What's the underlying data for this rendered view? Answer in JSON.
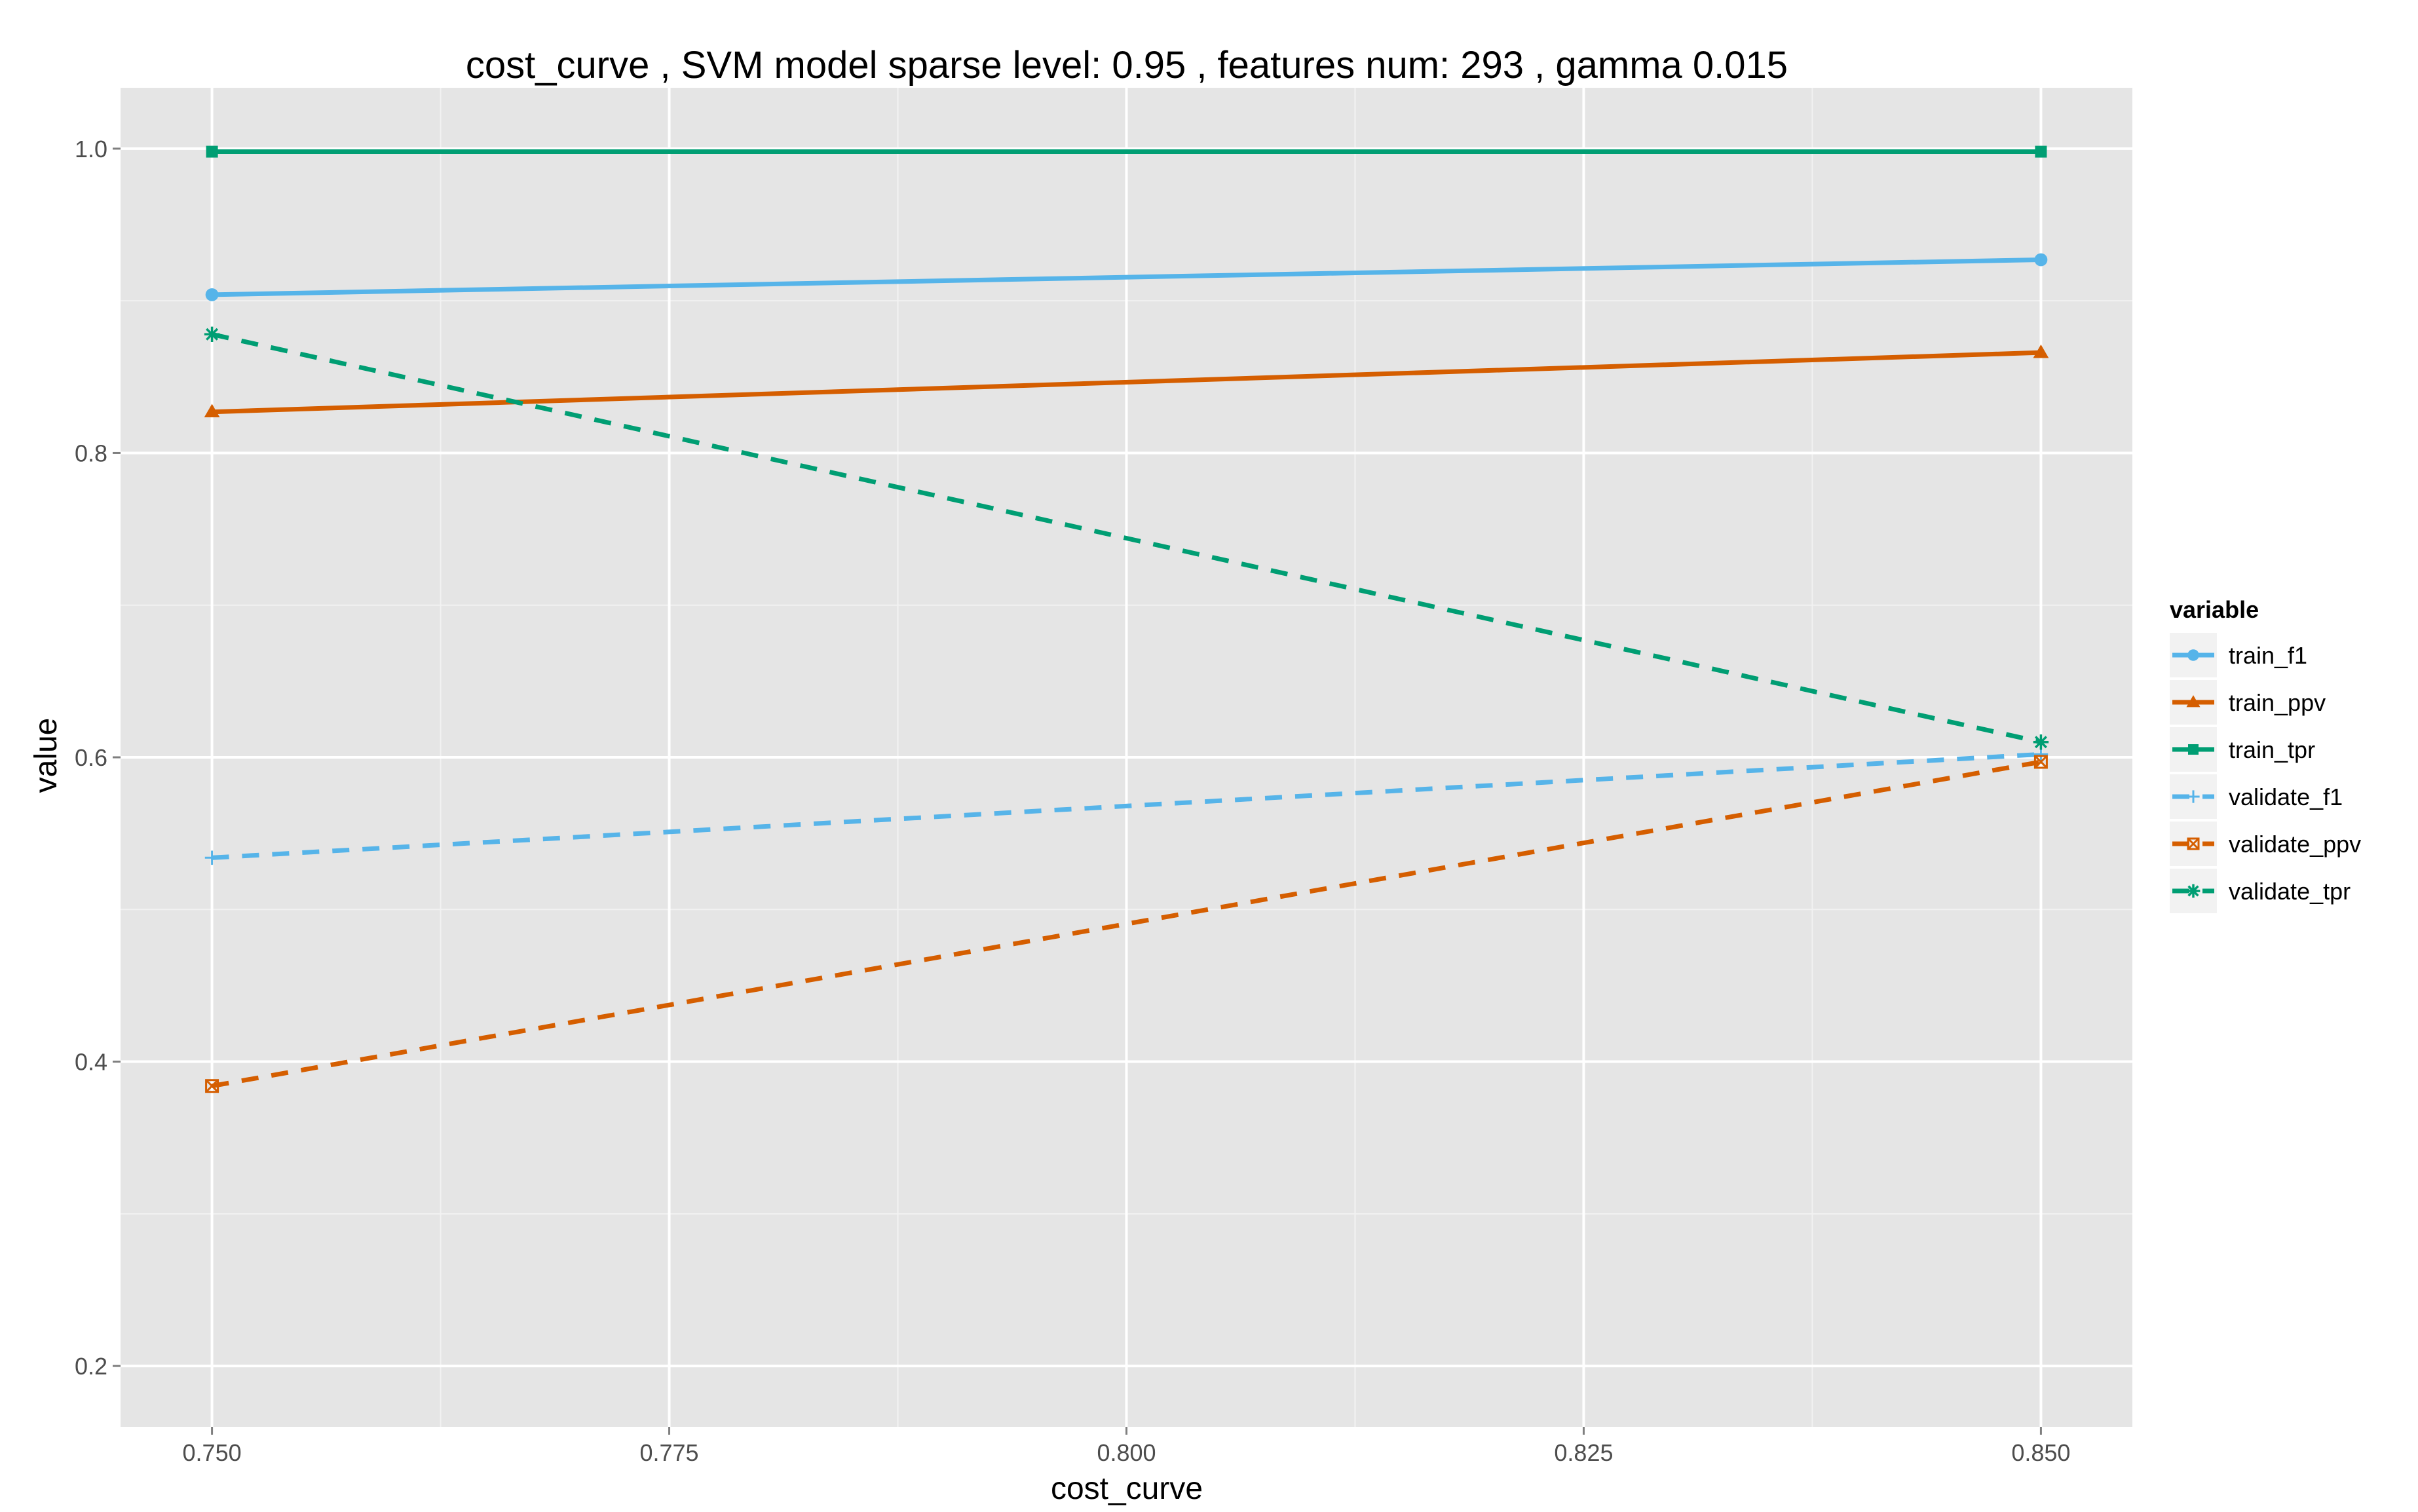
{
  "chart_data": {
    "type": "line",
    "title": "cost_curve ,  SVM model sparse level: 0.95 , features num: 293 , gamma 0.015",
    "xlabel": "cost_curve",
    "ylabel": "value",
    "x": [
      0.75,
      0.85
    ],
    "xlim": [
      0.745,
      0.855
    ],
    "ylim": [
      0.16,
      1.04
    ],
    "x_ticks": [
      0.75,
      0.775,
      0.8,
      0.825,
      0.85
    ],
    "x_tick_labels": [
      "0.750",
      "0.775",
      "0.800",
      "0.825",
      "0.850"
    ],
    "y_ticks": [
      0.2,
      0.4,
      0.6,
      0.8,
      1.0
    ],
    "y_tick_labels": [
      "0.2",
      "0.4",
      "0.6",
      "0.8",
      "1.0"
    ],
    "grid": true,
    "legend_title": "variable",
    "legend_position": "right",
    "series": [
      {
        "name": "train_f1",
        "values": [
          0.904,
          0.927
        ],
        "color": "#56B4E9",
        "linestyle": "solid",
        "marker": "circle"
      },
      {
        "name": "train_ppv",
        "values": [
          0.827,
          0.866
        ],
        "color": "#D55E00",
        "linestyle": "solid",
        "marker": "triangle"
      },
      {
        "name": "train_tpr",
        "values": [
          0.998,
          0.998
        ],
        "color": "#009E73",
        "linestyle": "solid",
        "marker": "square"
      },
      {
        "name": "validate_f1",
        "values": [
          0.534,
          0.602
        ],
        "color": "#56B4E9",
        "linestyle": "dashed",
        "marker": "plus"
      },
      {
        "name": "validate_ppv",
        "values": [
          0.384,
          0.597
        ],
        "color": "#D55E00",
        "linestyle": "dashed",
        "marker": "boxed-x"
      },
      {
        "name": "validate_tpr",
        "values": [
          0.878,
          0.61
        ],
        "color": "#009E73",
        "linestyle": "dashed",
        "marker": "asterisk"
      }
    ]
  }
}
